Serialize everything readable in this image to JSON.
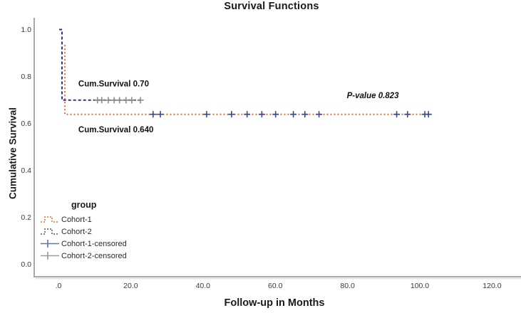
{
  "figure_title": "Survival Functions",
  "chart_data": {
    "type": "line",
    "subtype": "kaplan-meier-step-survival",
    "title": "Survival Functions",
    "xlabel": "Follow-up in Months",
    "ylabel": "Cumulative Survival",
    "xlim": [
      -6.7,
      128
    ],
    "ylim": [
      -0.05,
      1.05
    ],
    "grid": false,
    "legend_position": "lower-left",
    "axis_color": "#A8A8A8",
    "axis_shadow_color": "#DEDEDE",
    "text_color": "#3A3A3A",
    "annotation_color": "#111111",
    "x_ticks": {
      "values": [
        0,
        20,
        40,
        60,
        80,
        100,
        120
      ],
      "labels": [
        ".0",
        "20.0",
        "40.0",
        "60.0",
        "80.0",
        "100.0",
        "120.0"
      ]
    },
    "y_ticks": {
      "values": [
        0.0,
        0.2,
        0.4,
        0.6,
        0.8,
        1.0
      ],
      "labels": [
        "0.0",
        "0.2",
        "0.4",
        "0.6",
        "0.8",
        "1.0"
      ]
    },
    "series": [
      {
        "name": "Cohort-1",
        "color": "#EE6B26",
        "dash": "2 3",
        "width": 2,
        "final_cum_survival": 0.64,
        "points": [
          [
            1.8,
            0.935
          ],
          [
            1.8,
            0.64
          ],
          [
            103.4,
            0.64
          ]
        ]
      },
      {
        "name": "Cohort-2",
        "color": "#2E3497",
        "dash": "4 3",
        "width": 2,
        "final_cum_survival": 0.7,
        "points": [
          [
            0.2,
            1.0
          ],
          [
            1.0,
            1.0
          ],
          [
            1.0,
            0.7
          ],
          [
            23.3,
            0.7
          ]
        ]
      }
    ],
    "censored": [
      {
        "name": "Cohort-1-censored",
        "color": "#3A4899",
        "y": 0.64,
        "size": 4.5,
        "x": [
          26.2,
          28.2,
          41.0,
          47.9,
          52.2,
          56.3,
          60.1,
          65.0,
          68.2,
          72.1,
          93.6,
          96.6,
          101.4,
          102.4
        ]
      },
      {
        "name": "Cohort-2-censored",
        "color": "#8C8C8C",
        "y": 0.7,
        "size": 4.5,
        "x": [
          10.8,
          12.0,
          13.8,
          15.4,
          16.9,
          18.7,
          20.3,
          22.7
        ]
      }
    ],
    "annotations": [
      {
        "text": "Cum.Survival 0.70",
        "x": 5.5,
        "y": 0.77,
        "weight": "bold",
        "style": "normal"
      },
      {
        "text": "Cum.Survival 0.640",
        "x": 5.5,
        "y": 0.575,
        "weight": "bold",
        "style": "normal"
      },
      {
        "text": "P-value 0.823",
        "x": 79.8,
        "y": 0.72,
        "weight": "bold",
        "style": "italic"
      }
    ]
  },
  "legend": {
    "header": "group",
    "items": [
      {
        "label": "Cohort-1",
        "marker": "step-dash",
        "color": "#EE6B26"
      },
      {
        "label": "Cohort-2",
        "marker": "step-dash",
        "color": "#4A55A2"
      },
      {
        "label": "Cohort-1-censored",
        "marker": "plus-line",
        "color": "#5B74B5"
      },
      {
        "label": "Cohort-2-censored",
        "marker": "plus-line",
        "color": "#9A9A9A"
      }
    ]
  }
}
